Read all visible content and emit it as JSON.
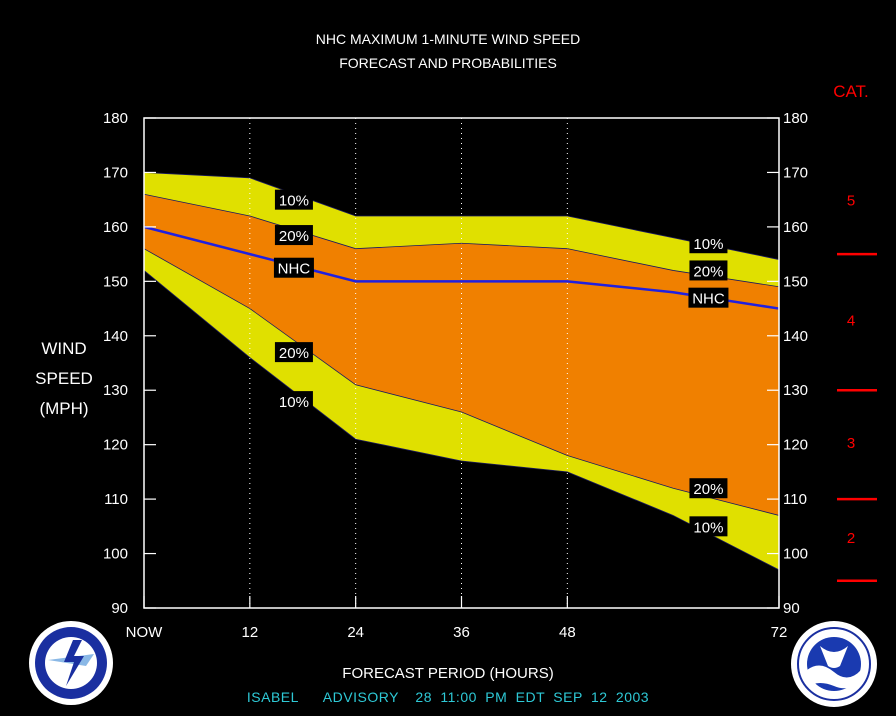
{
  "header": {
    "title_line1": "NHC MAXIMUM 1-MINUTE WIND SPEED",
    "title_line2": "FORECAST AND PROBABILITIES"
  },
  "y_axis_label": [
    "WIND",
    "SPEED",
    "(MPH)"
  ],
  "x_axis_label": "FORECAST PERIOD (HOURS)",
  "advisory": "ISABEL   ADVISORY  28 11:00 PM EDT SEP 12 2003",
  "category_header": "CAT.",
  "logos": {
    "left": "nws-logo-icon",
    "right": "noaa-logo-icon"
  },
  "colors": {
    "background": "#000000",
    "band_10": "#e0e000",
    "band_20": "#f08000",
    "nhc_line": "#2020e0",
    "category": "#ff0000",
    "advisory": "#2ec9d6"
  },
  "chart_data": {
    "type": "area",
    "x": [
      0,
      12,
      24,
      36,
      48,
      60,
      72
    ],
    "x_tick_values": [
      0,
      12,
      24,
      36,
      48,
      72
    ],
    "x_tick_labels": [
      "NOW",
      "12",
      "24",
      "36",
      "48",
      "72"
    ],
    "xlim": [
      0,
      72
    ],
    "ylim": [
      90,
      180
    ],
    "y_ticks": [
      90,
      100,
      110,
      120,
      130,
      140,
      150,
      160,
      170,
      180
    ],
    "series": [
      {
        "name": "10%",
        "role": "upper",
        "values": [
          170,
          169,
          162,
          162,
          162,
          158,
          154
        ]
      },
      {
        "name": "20%",
        "role": "upper",
        "values": [
          166,
          162,
          156,
          157,
          156,
          152,
          149
        ]
      },
      {
        "name": "NHC",
        "role": "forecast",
        "values": [
          160,
          155,
          150,
          150,
          150,
          148,
          145
        ]
      },
      {
        "name": "20%",
        "role": "lower",
        "values": [
          156,
          145,
          131,
          126,
          118,
          112,
          107
        ]
      },
      {
        "name": "10%",
        "role": "lower",
        "values": [
          152,
          136,
          121,
          117,
          115,
          107,
          97
        ]
      }
    ],
    "band_labels": [
      {
        "text": "10%",
        "x": 17,
        "y": 165
      },
      {
        "text": "20%",
        "x": 17,
        "y": 158.5
      },
      {
        "text": "NHC",
        "x": 17,
        "y": 152.5
      },
      {
        "text": "20%",
        "x": 17,
        "y": 137
      },
      {
        "text": "10%",
        "x": 17,
        "y": 128
      },
      {
        "text": "10%",
        "x": 64,
        "y": 157
      },
      {
        "text": "20%",
        "x": 64,
        "y": 152
      },
      {
        "text": "NHC",
        "x": 64,
        "y": 147
      },
      {
        "text": "20%",
        "x": 64,
        "y": 112
      },
      {
        "text": "10%",
        "x": 64,
        "y": 105
      }
    ],
    "grid": "vertical dotted",
    "categories": [
      {
        "label": "5",
        "y": 165
      },
      {
        "label": "4",
        "y": 143
      },
      {
        "label": "3",
        "y": 120.5
      },
      {
        "label": "2",
        "y": 103
      }
    ],
    "category_thresholds": [
      155,
      130,
      110,
      95
    ]
  }
}
